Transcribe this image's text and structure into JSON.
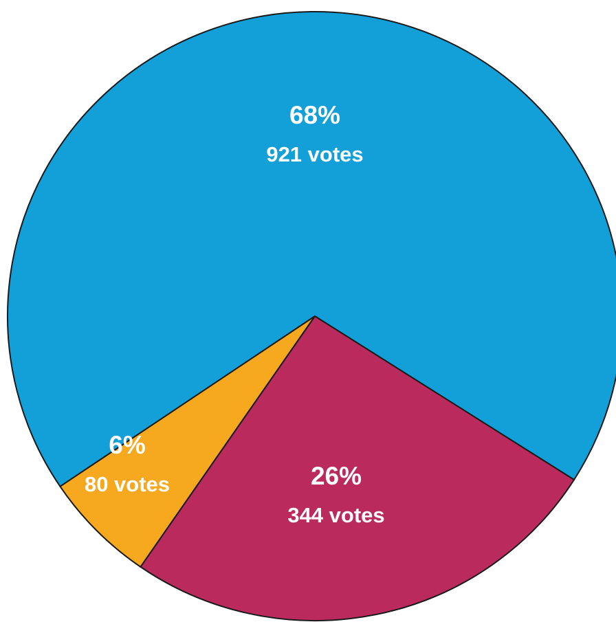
{
  "chart_data": {
    "type": "pie",
    "title": "",
    "slices": [
      {
        "percent_label": "68%",
        "votes_label": "921 votes",
        "value": 921,
        "color": "#13a0d8"
      },
      {
        "percent_label": "26%",
        "votes_label": "344 votes",
        "value": 344,
        "color": "#bb2a5d"
      },
      {
        "percent_label": "6%",
        "votes_label": "80 votes",
        "value": 80,
        "color": "#f6a81f"
      }
    ],
    "legend": "none"
  }
}
